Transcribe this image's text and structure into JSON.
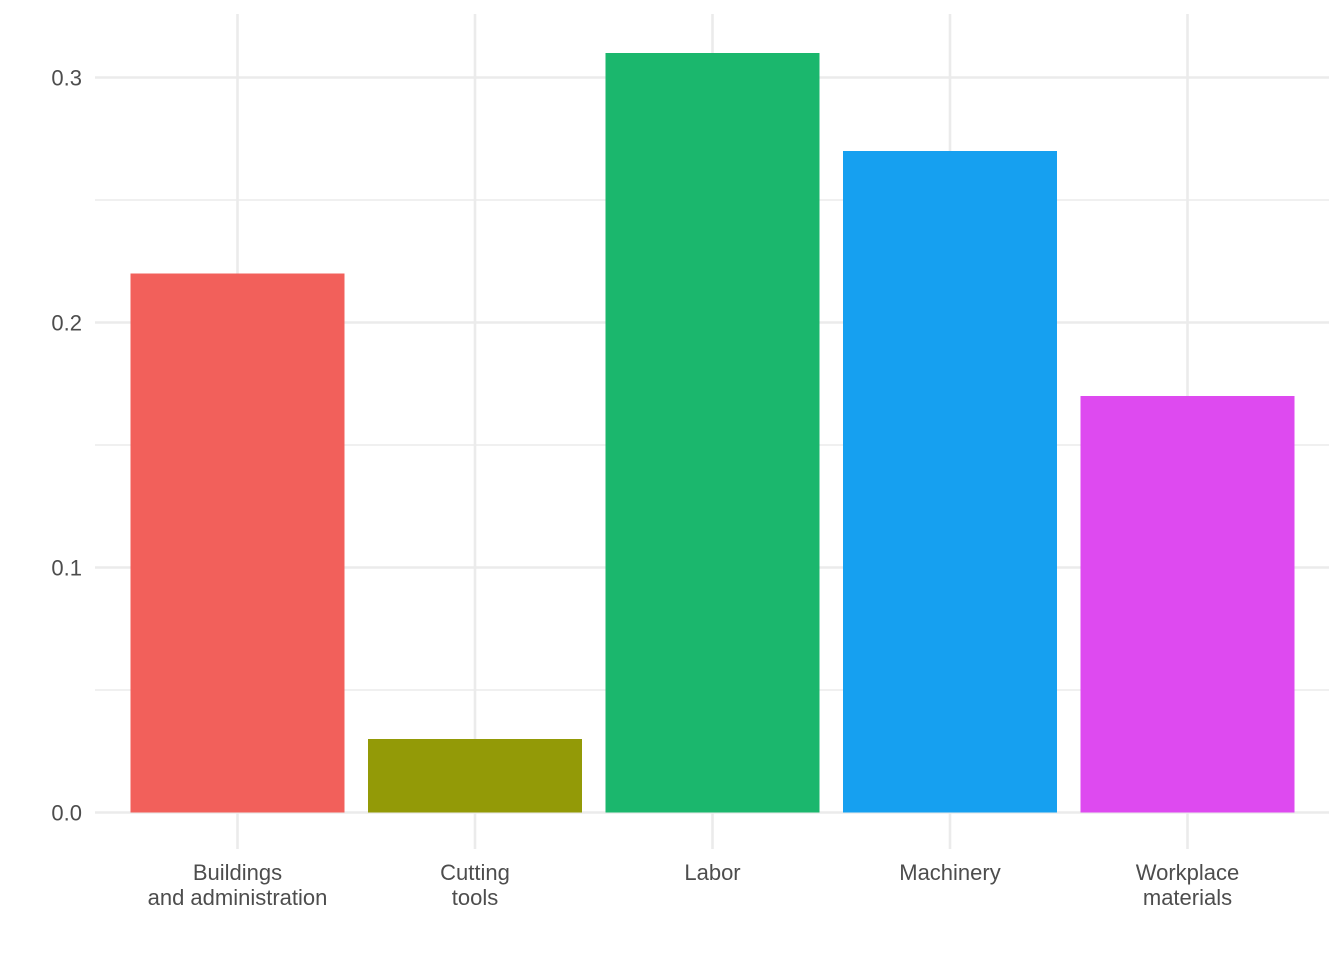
{
  "chart_data": {
    "type": "bar",
    "title": "",
    "xlabel": "",
    "ylabel": "",
    "categories": [
      [
        "Buildings",
        "and administration"
      ],
      [
        "Cutting",
        "tools"
      ],
      [
        "Labor"
      ],
      [
        "Machinery"
      ],
      [
        "Workplace",
        "materials"
      ]
    ],
    "values": [
      0.22,
      0.03,
      0.31,
      0.27,
      0.17
    ],
    "colors": [
      "#F2605B",
      "#939A07",
      "#1BB76D",
      "#16A0F0",
      "#DE4AF0"
    ],
    "ylim": [
      0,
      0.3
    ],
    "yticks": [
      0.0,
      0.1,
      0.2,
      0.3
    ],
    "ytick_labels": [
      "0.0",
      "0.1",
      "0.2",
      "0.3"
    ],
    "grid": true,
    "legend": "none"
  }
}
